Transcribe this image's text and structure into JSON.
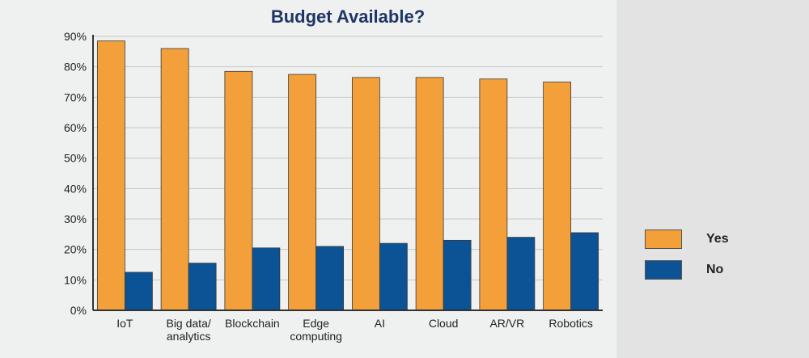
{
  "chart_data": {
    "type": "bar",
    "title": "Budget Available?",
    "categories": [
      [
        "IoT"
      ],
      [
        "Big data/",
        "analytics"
      ],
      [
        "Blockchain"
      ],
      [
        "Edge",
        "computing"
      ],
      [
        "AI"
      ],
      [
        "Cloud"
      ],
      [
        "AR/VR"
      ],
      [
        "Robotics"
      ]
    ],
    "series": [
      {
        "name": "Yes",
        "color": "#f3a03a",
        "values": [
          88.5,
          86,
          78.5,
          77.5,
          76.5,
          76.5,
          76,
          75
        ]
      },
      {
        "name": "No",
        "color": "#0b5394",
        "values": [
          12.5,
          15.5,
          20.5,
          21,
          22,
          23,
          24,
          25.5
        ]
      }
    ],
    "ylim": [
      0,
      90
    ],
    "yticks": [
      "0%",
      "10%",
      "20%",
      "30%",
      "40%",
      "50%",
      "60%",
      "70%",
      "80%",
      "90%"
    ],
    "grid": true,
    "legend_position": "right"
  }
}
